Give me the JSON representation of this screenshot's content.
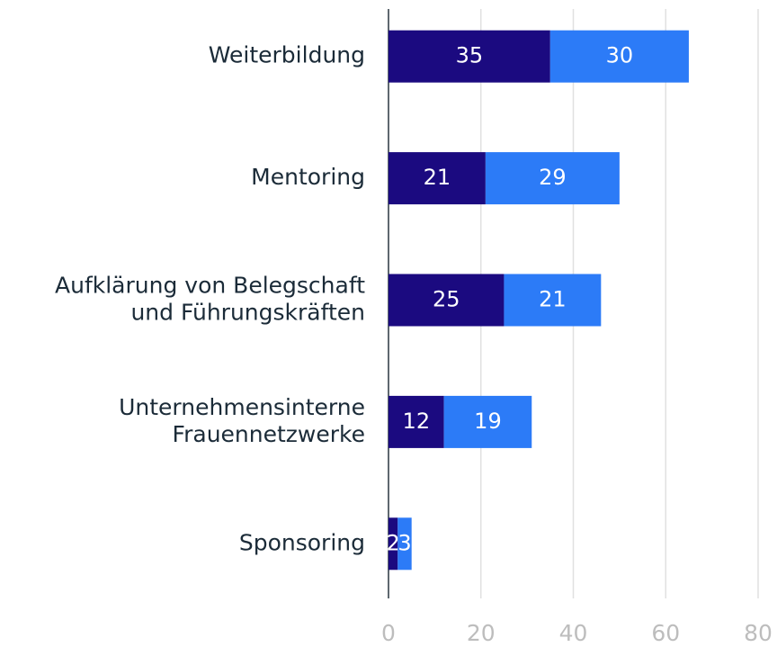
{
  "chart_data": {
    "type": "bar",
    "orientation": "horizontal",
    "stacked": true,
    "categories": [
      [
        "Weiterbildung"
      ],
      [
        "Mentoring"
      ],
      [
        "Aufklärung von Belegschaft",
        "und Führungskräften"
      ],
      [
        "Unternehmensinterne",
        "Frauennetzwerke"
      ],
      [
        "Sponsoring"
      ]
    ],
    "series": [
      {
        "color": "#1b0a80",
        "values": [
          35,
          21,
          25,
          12,
          2
        ]
      },
      {
        "color": "#2c7bf7",
        "values": [
          30,
          29,
          21,
          19,
          3
        ]
      }
    ],
    "xlim": [
      0,
      80
    ],
    "xticks": [
      0,
      20,
      40,
      60,
      80
    ],
    "grid": true
  }
}
